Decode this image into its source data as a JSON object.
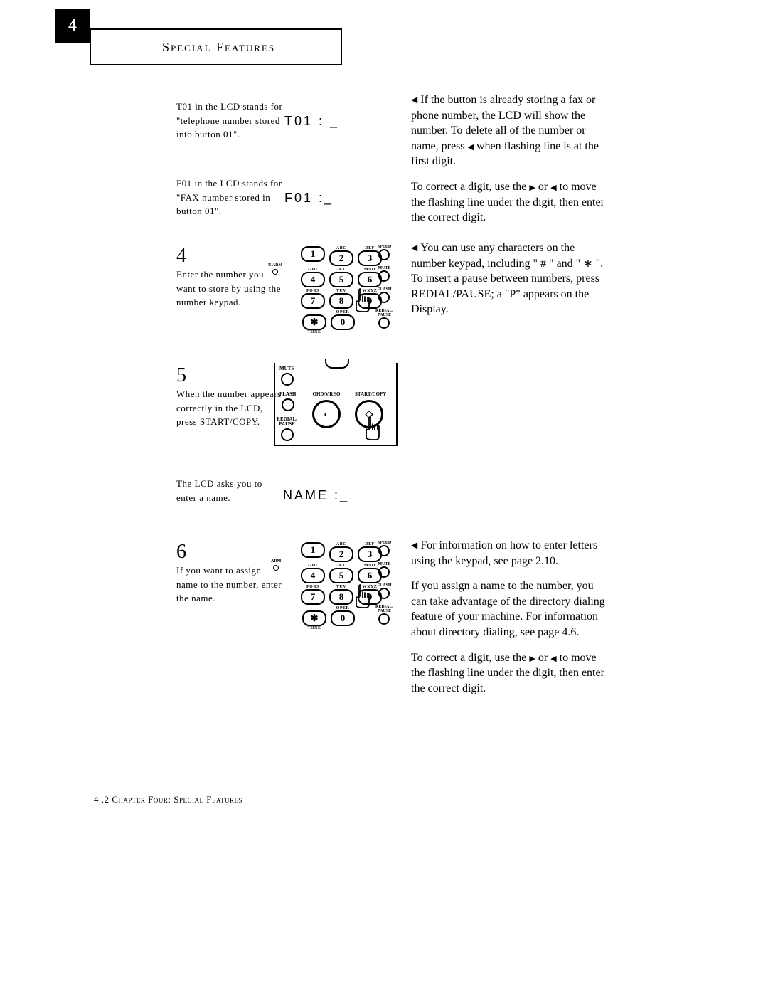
{
  "chapter_tab": "4",
  "header": "Special Features",
  "note1": {
    "text": "T01 in the LCD stands for \"telephone number stored into button 01\".",
    "lcd": "T01 : _"
  },
  "note2": {
    "text": "F01 in the LCD stands for \"FAX number stored in button 01\".",
    "lcd": "F01 :_"
  },
  "step4": {
    "num": "4",
    "text": "Enter the number you want to store by using the number keypad."
  },
  "step5": {
    "num": "5",
    "text": "When the number appears correctly in the LCD, press START/COPY."
  },
  "note3": {
    "text": "The LCD asks you to enter a name.",
    "lcd": "NAME :_"
  },
  "step6": {
    "num": "6",
    "text": "If you want to assign name to the number, enter the name."
  },
  "right1": {
    "p1a": "If the button is already storing a fax or phone number, the LCD will show the number. To delete all of the number or name, press ",
    "p1b": " when flashing line is at the first digit.",
    "p2a": "To correct a digit, use the ",
    "p2b": " or ",
    "p2c": " to move the flashing line under the digit, then enter the correct digit."
  },
  "right2": {
    "p1": "You can use any characters on the number keypad, including \" # \" and \" ∗ \". To insert a pause between numbers, press REDIAL/PAUSE;  a \"P\" appears on the Display."
  },
  "right3": {
    "p1": "For information on how to enter letters using the keypad, see page 2.10.",
    "p2": "If you assign a name to the number, you can take advantage of the directory dialing feature of your machine. For information about directory dialing, see page 4.6.",
    "p3a": "To correct a digit, use the ",
    "p3b": " or ",
    "p3c": " to move the flashing line under the digit, then enter the correct digit."
  },
  "footer": {
    "pagenum": "4 .2",
    "chapter": " Chapter Four:  Special Features"
  },
  "keypad": {
    "rows": [
      [
        {
          "n": "1",
          "l": ""
        },
        {
          "n": "2",
          "l": "ABC"
        },
        {
          "n": "3",
          "l": "DEF"
        }
      ],
      [
        {
          "n": "4",
          "l": "GHI"
        },
        {
          "n": "5",
          "l": "JKL"
        },
        {
          "n": "6",
          "l": "MNO"
        }
      ],
      [
        {
          "n": "7",
          "l": "PQRS"
        },
        {
          "n": "8",
          "l": "TUV"
        },
        {
          "n": "9",
          "l": "WXYZ"
        }
      ],
      [
        {
          "n": "✱",
          "l": "TONE"
        },
        {
          "n": "0",
          "l": "OPER"
        },
        {
          "n": "",
          "l": ""
        }
      ]
    ],
    "left_label": "U.ARM",
    "right_labels": [
      "SPEED",
      "MUTE",
      "FLASH",
      "REDIAL/\nPAUSE"
    ]
  },
  "startcopy": {
    "left": [
      "MUTE",
      "FLASH",
      "REDIAL/\nPAUSE"
    ],
    "mid": "OHD/V.REQ",
    "right": "START/COPY"
  }
}
